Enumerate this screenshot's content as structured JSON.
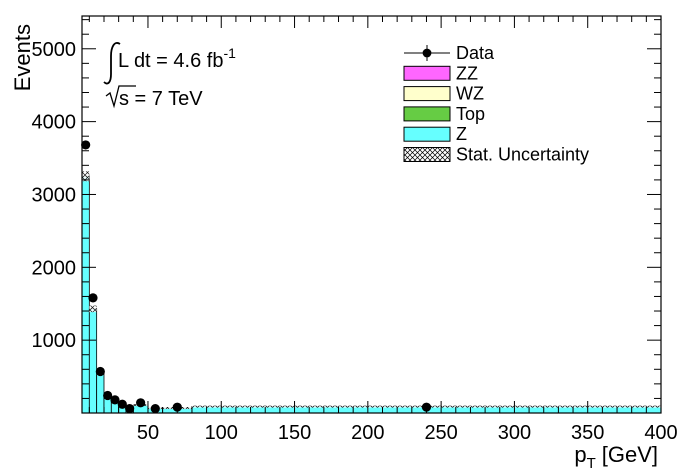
{
  "chart_data": {
    "type": "bar",
    "xlabel": "p",
    "xlabel_sub": "T",
    "xlabel_unit": "[GeV]",
    "ylabel": "Events",
    "xlim": [
      5,
      400
    ],
    "ylim": [
      0,
      5450
    ],
    "x_ticks": [
      50,
      100,
      150,
      200,
      250,
      300,
      350,
      400
    ],
    "y_ticks": [
      1000,
      2000,
      3000,
      4000,
      5000
    ],
    "grid": false,
    "legend_position": "top-right",
    "annotations": {
      "lumi_prefix": "L dt = 4.6 fb",
      "lumi_sup": "-1",
      "energy": "s = 7 TeV"
    },
    "legend": [
      {
        "label": "Data",
        "kind": "marker",
        "color": "#000000"
      },
      {
        "label": "ZZ",
        "kind": "box",
        "color": "#ff66ff"
      },
      {
        "label": "WZ",
        "kind": "box",
        "color": "#ffffcc"
      },
      {
        "label": "Top",
        "kind": "box",
        "color": "#66cc44"
      },
      {
        "label": "Z",
        "kind": "box",
        "color": "#66ffff"
      },
      {
        "label": "Stat. Uncertainty",
        "kind": "hatch",
        "color": "#000000"
      }
    ],
    "bins": [
      {
        "lo": 5,
        "hi": 10,
        "value": 3250
      },
      {
        "lo": 10,
        "hi": 15,
        "value": 1430
      },
      {
        "lo": 15,
        "hi": 20,
        "value": 560
      },
      {
        "lo": 20,
        "hi": 25,
        "value": 250
      },
      {
        "lo": 25,
        "hi": 30,
        "value": 170
      },
      {
        "lo": 30,
        "hi": 35,
        "value": 110
      },
      {
        "lo": 35,
        "hi": 40,
        "value": 80
      },
      {
        "lo": 40,
        "hi": 50,
        "value": 110
      },
      {
        "lo": 50,
        "hi": 60,
        "value": 70
      },
      {
        "lo": 60,
        "hi": 80,
        "value": 70
      },
      {
        "lo": 80,
        "hi": 400,
        "value": 90
      }
    ],
    "series": [
      {
        "name": "Data",
        "x": [
          7.5,
          12.5,
          17.5,
          22.5,
          27.5,
          32.5,
          37.5,
          45,
          55,
          70,
          240
        ],
        "y": [
          3680,
          1580,
          570,
          240,
          180,
          120,
          60,
          140,
          60,
          80,
          80
        ]
      }
    ]
  }
}
